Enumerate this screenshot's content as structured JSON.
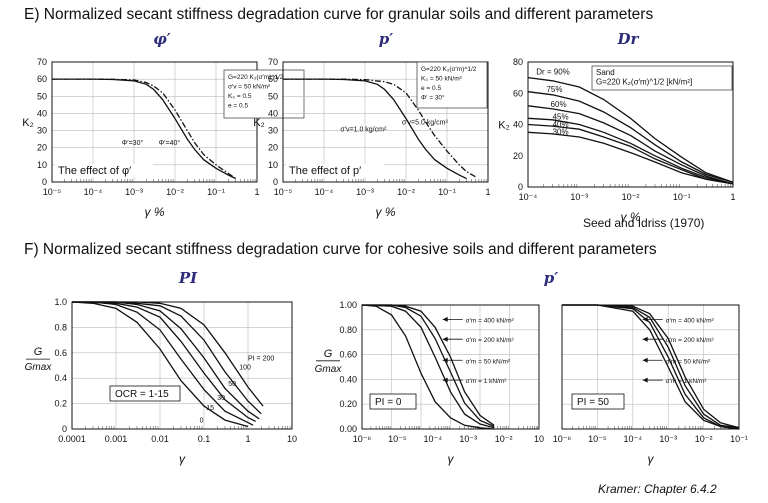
{
  "headings": {
    "e": "E) Normalized secant stiffness degradation curve for granular soils and different parameters",
    "f": "F) Normalized secant stiffness degradation curve for cohesive soils and different parameters"
  },
  "panel_titles": {
    "e1": "φ′",
    "e2": "p′",
    "e3": "Dr",
    "f1": "PI",
    "f2": "p′"
  },
  "credits": {
    "seed": "Seed and Idriss (1970)",
    "kramer": "Kramer: Chapter 6.4.2"
  },
  "chart_data": [
    {
      "id": "e1",
      "type": "line",
      "x_scale": "log",
      "xlabel": "γ %",
      "ylabel": "K₂",
      "xlim": [
        1e-05,
        1
      ],
      "ylim": [
        0,
        70
      ],
      "xticks": [
        "10⁻⁵",
        "10⁻⁴",
        "10⁻³",
        "10⁻²",
        "10⁻¹",
        "1"
      ],
      "yticks": [
        "0",
        "10",
        "20",
        "30",
        "40",
        "50",
        "60",
        "70"
      ],
      "grid": true,
      "legend_box": [
        "G=220 K₂(σ′m)^1/2",
        "σ′v = 50 kN/m²",
        "K₀ = 0.5",
        "e = 0.5"
      ],
      "curve_labels": [
        "Φ′=30°",
        "Φ′=40°"
      ],
      "caption": "The effect of φ′",
      "series": [
        {
          "name": "Φ′=30°",
          "style": "solid",
          "x": [
            1e-05,
            0.0001,
            0.0003,
            0.001,
            0.002,
            0.003,
            0.005,
            0.01,
            0.02,
            0.03,
            0.05,
            0.1,
            0.2,
            0.3
          ],
          "y": [
            60,
            60,
            59.8,
            59,
            57,
            54,
            48,
            37,
            25,
            19,
            13,
            8,
            4,
            2
          ]
        },
        {
          "name": "Φ′=40°",
          "style": "dashdot",
          "x": [
            1e-05,
            0.0001,
            0.0003,
            0.001,
            0.002,
            0.003,
            0.005,
            0.01,
            0.02,
            0.03,
            0.05,
            0.1,
            0.2,
            0.3
          ],
          "y": [
            60,
            60,
            59.9,
            59.5,
            58,
            56,
            52,
            42,
            30,
            23,
            16,
            10,
            5,
            2
          ]
        }
      ]
    },
    {
      "id": "e2",
      "type": "line",
      "x_scale": "log",
      "xlabel": "γ %",
      "ylabel": "K₂",
      "xlim": [
        1e-05,
        1
      ],
      "ylim": [
        0,
        70
      ],
      "xticks": [
        "10⁻⁵",
        "10⁻⁴",
        "10⁻³",
        "10⁻²",
        "10⁻¹",
        "1"
      ],
      "yticks": [
        "0",
        "10",
        "20",
        "30",
        "40",
        "50",
        "60",
        "70"
      ],
      "grid": true,
      "legend_box": [
        "G=220 K₂(σ′m)^1/2",
        "K₀ = 50 kN/m²",
        "e = 0.5",
        "Φ′ = 30°"
      ],
      "curve_labels": [
        "σ′v=1.0 kg/cm²",
        "σ′v=5.0 kg/cm²"
      ],
      "caption": "The effect of p′",
      "series": [
        {
          "name": "σ′v=1.0 kg/cm²",
          "style": "solid",
          "x": [
            1e-05,
            0.0001,
            0.0003,
            0.001,
            0.002,
            0.003,
            0.005,
            0.01,
            0.02,
            0.03,
            0.05,
            0.1,
            0.2,
            0.3
          ],
          "y": [
            60,
            60,
            59.8,
            59,
            57,
            54,
            48,
            37,
            25,
            19,
            13,
            8,
            4,
            2
          ]
        },
        {
          "name": "σ′v=5.0 kg/cm²",
          "style": "dashdot",
          "x": [
            1e-05,
            0.0001,
            0.0003,
            0.001,
            0.003,
            0.005,
            0.01,
            0.02,
            0.03,
            0.05,
            0.1,
            0.2,
            0.3,
            0.5
          ],
          "y": [
            60,
            60,
            60,
            59.7,
            58.5,
            57,
            52,
            42,
            35,
            27,
            18,
            10,
            6,
            3
          ]
        }
      ]
    },
    {
      "id": "e3",
      "type": "line",
      "x_scale": "log",
      "xlabel": "γ %",
      "ylabel": "K₂",
      "xlim": [
        0.0001,
        1
      ],
      "ylim": [
        0,
        80
      ],
      "xticks": [
        "10⁻⁴",
        "10⁻³",
        "10⁻²",
        "10⁻¹",
        "1"
      ],
      "yticks": [
        "0",
        "20",
        "40",
        "60",
        "80"
      ],
      "grid": false,
      "legend_box": [
        "Sand",
        "G=220 K₂(σ′m)^1/2  [kN/m²]"
      ],
      "curve_labels": [
        "Dr = 90%",
        "75%",
        "60%",
        "45%",
        "40%",
        "30%"
      ],
      "series": [
        {
          "name": "Dr = 90%",
          "x": [
            0.0001,
            0.0003,
            0.001,
            0.003,
            0.01,
            0.03,
            0.1,
            0.3,
            1
          ],
          "y": [
            70,
            68,
            64,
            56,
            44,
            31,
            19,
            9,
            3
          ]
        },
        {
          "name": "75%",
          "x": [
            0.0001,
            0.0003,
            0.001,
            0.003,
            0.01,
            0.03,
            0.1,
            0.3,
            1
          ],
          "y": [
            61,
            59,
            55,
            48,
            38,
            27,
            16,
            8,
            3
          ]
        },
        {
          "name": "60%",
          "x": [
            0.0001,
            0.0003,
            0.001,
            0.003,
            0.01,
            0.03,
            0.1,
            0.3,
            1
          ],
          "y": [
            52,
            50,
            47,
            41,
            33,
            23,
            14,
            7,
            2
          ]
        },
        {
          "name": "45%",
          "x": [
            0.0001,
            0.0003,
            0.001,
            0.003,
            0.01,
            0.03,
            0.1,
            0.3,
            1
          ],
          "y": [
            44,
            43,
            40,
            35,
            28,
            20,
            12,
            6,
            2
          ]
        },
        {
          "name": "40%",
          "x": [
            0.0001,
            0.0003,
            0.001,
            0.003,
            0.01,
            0.03,
            0.1,
            0.3,
            1
          ],
          "y": [
            40,
            39,
            37,
            32,
            26,
            18,
            11,
            5,
            2
          ]
        },
        {
          "name": "30%",
          "x": [
            0.0001,
            0.0003,
            0.001,
            0.003,
            0.01,
            0.03,
            0.1,
            0.3,
            1
          ],
          "y": [
            35,
            34,
            32,
            28,
            22,
            16,
            9,
            5,
            2
          ]
        }
      ]
    },
    {
      "id": "f1",
      "type": "line",
      "x_scale": "log",
      "xlabel": "γ",
      "ylabel": "G / Gmax",
      "xlim": [
        0.0001,
        10
      ],
      "ylim": [
        0,
        1
      ],
      "xticks": [
        "0.0001",
        "0.001",
        "0.01",
        "0.1",
        "1",
        "10"
      ],
      "yticks": [
        "0",
        "0.2",
        "0.4",
        "0.6",
        "0.8",
        "1.0"
      ],
      "grid": true,
      "caption": "OCR = 1-15",
      "curve_labels": [
        "0",
        "15",
        "30",
        "50",
        "100",
        "PI = 200"
      ],
      "series": [
        {
          "name": "0",
          "x": [
            0.0001,
            0.0003,
            0.001,
            0.003,
            0.01,
            0.03,
            0.1,
            0.3,
            1
          ],
          "y": [
            1.0,
            0.99,
            0.95,
            0.84,
            0.63,
            0.38,
            0.18,
            0.07,
            0.02
          ]
        },
        {
          "name": "15",
          "x": [
            0.0001,
            0.0003,
            0.001,
            0.003,
            0.01,
            0.03,
            0.1,
            0.3,
            1,
            1.3
          ],
          "y": [
            1.0,
            1.0,
            0.98,
            0.92,
            0.78,
            0.55,
            0.31,
            0.14,
            0.05,
            0.03
          ]
        },
        {
          "name": "30",
          "x": [
            0.0001,
            0.001,
            0.003,
            0.01,
            0.03,
            0.1,
            0.3,
            1,
            1.5
          ],
          "y": [
            1.0,
            0.99,
            0.96,
            0.88,
            0.69,
            0.44,
            0.23,
            0.09,
            0.06
          ]
        },
        {
          "name": "50",
          "x": [
            0.0001,
            0.001,
            0.003,
            0.01,
            0.03,
            0.1,
            0.3,
            1,
            1.8
          ],
          "y": [
            1.0,
            1.0,
            0.98,
            0.93,
            0.79,
            0.56,
            0.32,
            0.14,
            0.08
          ]
        },
        {
          "name": "100",
          "x": [
            0.0001,
            0.001,
            0.003,
            0.01,
            0.03,
            0.1,
            0.3,
            1,
            2
          ],
          "y": [
            1.0,
            1.0,
            0.99,
            0.97,
            0.89,
            0.7,
            0.45,
            0.22,
            0.12
          ]
        },
        {
          "name": "PI = 200",
          "x": [
            0.0001,
            0.001,
            0.003,
            0.01,
            0.03,
            0.1,
            0.3,
            1,
            2.2
          ],
          "y": [
            1.0,
            1.0,
            1.0,
            0.99,
            0.95,
            0.82,
            0.6,
            0.33,
            0.18
          ]
        }
      ]
    },
    {
      "id": "f2",
      "type": "line",
      "x_scale": "log",
      "xlabel": "γ",
      "ylabel": "G / Gmax",
      "xlim": [
        1e-06,
        1
      ],
      "ylim": [
        0,
        1
      ],
      "xticks": [
        "10⁻⁶",
        "10⁻⁵",
        "10⁻⁴",
        "10⁻³",
        "10⁻²",
        "10"
      ],
      "yticks": [
        "0.00",
        "0.20",
        "0.40",
        "0.60",
        "0.80",
        "1.00"
      ],
      "grid": true,
      "caption": "PI = 0",
      "curve_labels": [
        "σ′m = 400 kN/m²",
        "σ′m = 200 kN/m²",
        "σ′m = 50 kN/m²",
        "σ′m = 1 kN/m²"
      ],
      "series": [
        {
          "name": "σ′m = 1 kN/m²",
          "x": [
            1e-06,
            3e-06,
            1e-05,
            3e-05,
            0.0001,
            0.0003,
            0.001,
            0.003,
            0.01,
            0.03
          ],
          "y": [
            1.0,
            0.99,
            0.92,
            0.75,
            0.45,
            0.22,
            0.09,
            0.03,
            0.01,
            0.0
          ]
        },
        {
          "name": "σ′m = 50 kN/m²",
          "x": [
            1e-06,
            1e-05,
            3e-05,
            0.0001,
            0.0003,
            0.001,
            0.003,
            0.01,
            0.03
          ],
          "y": [
            1.0,
            0.99,
            0.95,
            0.82,
            0.58,
            0.3,
            0.12,
            0.04,
            0.01
          ]
        },
        {
          "name": "σ′m = 200 kN/m²",
          "x": [
            1e-06,
            1e-05,
            3e-05,
            0.0001,
            0.0003,
            0.001,
            0.003,
            0.01,
            0.03
          ],
          "y": [
            1.0,
            1.0,
            0.98,
            0.91,
            0.73,
            0.46,
            0.21,
            0.07,
            0.02
          ]
        },
        {
          "name": "σ′m = 400 kN/m²",
          "x": [
            1e-06,
            1e-05,
            3e-05,
            0.0001,
            0.0003,
            0.001,
            0.003,
            0.01,
            0.03
          ],
          "y": [
            1.0,
            1.0,
            0.99,
            0.95,
            0.82,
            0.58,
            0.3,
            0.11,
            0.03
          ]
        }
      ]
    },
    {
      "id": "f3",
      "type": "line",
      "x_scale": "log",
      "xlabel": "γ",
      "ylabel": "",
      "xlim": [
        1e-06,
        0.1
      ],
      "ylim": [
        0,
        1
      ],
      "xticks": [
        "10⁻⁶",
        "10⁻⁵",
        "10⁻⁴",
        "10⁻³",
        "10⁻²",
        "10⁻¹"
      ],
      "yticks": [],
      "grid": true,
      "caption": "PI = 50",
      "curve_labels": [
        "σ′m = 400 kN/m²",
        "σ′m = 200 kN/m²",
        "σ′m = 50 kN/m²",
        "σ′m = 1 kN/m²"
      ],
      "series": [
        {
          "name": "σ′m = 1 kN/m²",
          "x": [
            1e-06,
            1e-05,
            0.0001,
            0.0003,
            0.001,
            0.003,
            0.01,
            0.03,
            0.1
          ],
          "y": [
            1.0,
            1.0,
            0.95,
            0.8,
            0.5,
            0.22,
            0.07,
            0.02,
            0.0
          ]
        },
        {
          "name": "σ′m = 50 kN/m²",
          "x": [
            1e-06,
            1e-05,
            0.0001,
            0.0003,
            0.001,
            0.003,
            0.01,
            0.03,
            0.1
          ],
          "y": [
            1.0,
            1.0,
            0.97,
            0.86,
            0.58,
            0.28,
            0.09,
            0.02,
            0.0
          ]
        },
        {
          "name": "σ′m = 200 kN/m²",
          "x": [
            1e-06,
            1e-05,
            0.0001,
            0.0003,
            0.001,
            0.003,
            0.01,
            0.03,
            0.1
          ],
          "y": [
            1.0,
            1.0,
            0.98,
            0.9,
            0.66,
            0.35,
            0.12,
            0.03,
            0.01
          ]
        },
        {
          "name": "σ′m = 400 kN/m²",
          "x": [
            1e-06,
            1e-05,
            0.0001,
            0.0003,
            0.001,
            0.003,
            0.01,
            0.03,
            0.1
          ],
          "y": [
            1.0,
            1.0,
            0.99,
            0.93,
            0.73,
            0.42,
            0.16,
            0.05,
            0.01
          ]
        }
      ]
    }
  ]
}
